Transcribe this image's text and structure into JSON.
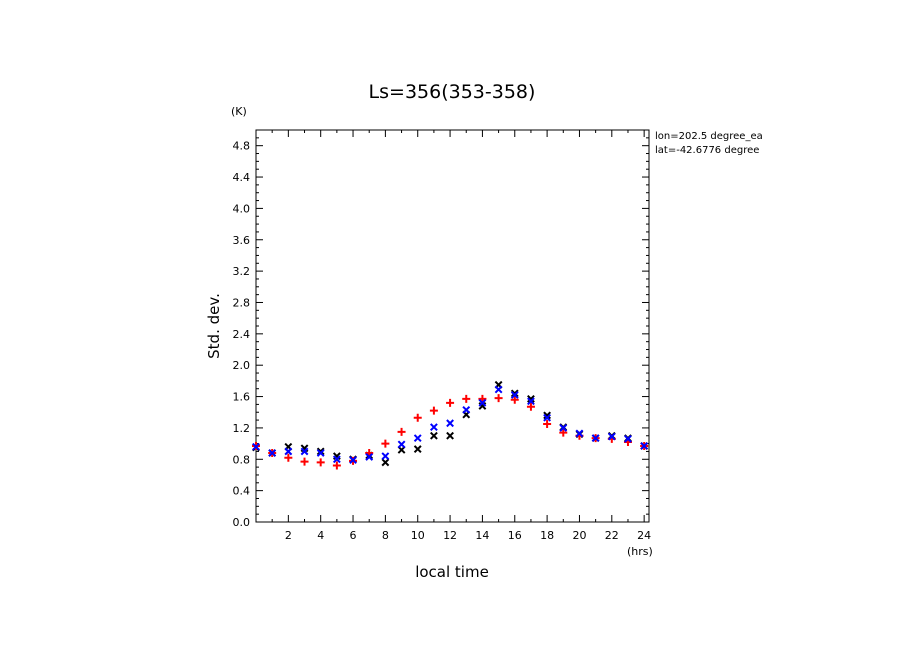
{
  "chart_data": {
    "type": "scatter",
    "title": "Ls=356(353-358)",
    "xlabel": "local time",
    "ylabel": "Std. dev.",
    "x_unit": "(hrs)",
    "y_unit": "(K)",
    "xlim": [
      0,
      24.3
    ],
    "ylim": [
      0,
      5.0
    ],
    "x_ticks": [
      2,
      4,
      6,
      8,
      10,
      12,
      14,
      16,
      18,
      20,
      22,
      24
    ],
    "y_ticks": [
      0.0,
      0.4,
      0.8,
      1.2,
      1.6,
      2.0,
      2.4,
      2.8,
      3.2,
      3.6,
      4.0,
      4.4,
      4.8
    ],
    "y_tick_labels": [
      "0.0",
      "0.4",
      "0.8",
      "1.2",
      "1.6",
      "2.0",
      "2.4",
      "2.8",
      "3.2",
      "3.6",
      "4.0",
      "4.4",
      "4.8"
    ],
    "annotations": [
      "lon=202.5 degree_ea",
      "lat=-42.6776 degree"
    ],
    "x": [
      0.0,
      1.0,
      2.0,
      3.0,
      4.0,
      5.0,
      6.0,
      7.0,
      8.0,
      9.0,
      10.0,
      11.0,
      12.0,
      13.0,
      14.0,
      15.0,
      16.0,
      17.0,
      18.0,
      19.0,
      20.0,
      21.0,
      22.0,
      23.0,
      24.0
    ],
    "series": [
      {
        "marker": "x",
        "color": "#000000",
        "values": [
          0.95,
          0.88,
          0.96,
          0.94,
          0.9,
          0.84,
          0.8,
          0.85,
          0.76,
          0.92,
          0.93,
          1.1,
          1.1,
          1.37,
          1.48,
          1.75,
          1.64,
          1.57,
          1.36,
          1.21,
          1.12,
          1.07,
          1.1,
          1.07,
          0.97
        ]
      },
      {
        "marker": "+",
        "color": "#ff0000",
        "values": [
          0.97,
          0.88,
          0.82,
          0.77,
          0.76,
          0.72,
          0.78,
          0.88,
          1.0,
          1.15,
          1.33,
          1.42,
          1.52,
          1.57,
          1.57,
          1.58,
          1.56,
          1.47,
          1.25,
          1.14,
          1.1,
          1.07,
          1.06,
          1.02,
          0.97
        ]
      },
      {
        "marker": "x",
        "color": "#0000ff",
        "values": [
          0.96,
          0.88,
          0.9,
          0.9,
          0.88,
          0.8,
          0.79,
          0.83,
          0.84,
          0.99,
          1.07,
          1.21,
          1.26,
          1.43,
          1.52,
          1.69,
          1.62,
          1.54,
          1.33,
          1.2,
          1.13,
          1.07,
          1.09,
          1.06,
          0.97
        ]
      }
    ]
  }
}
